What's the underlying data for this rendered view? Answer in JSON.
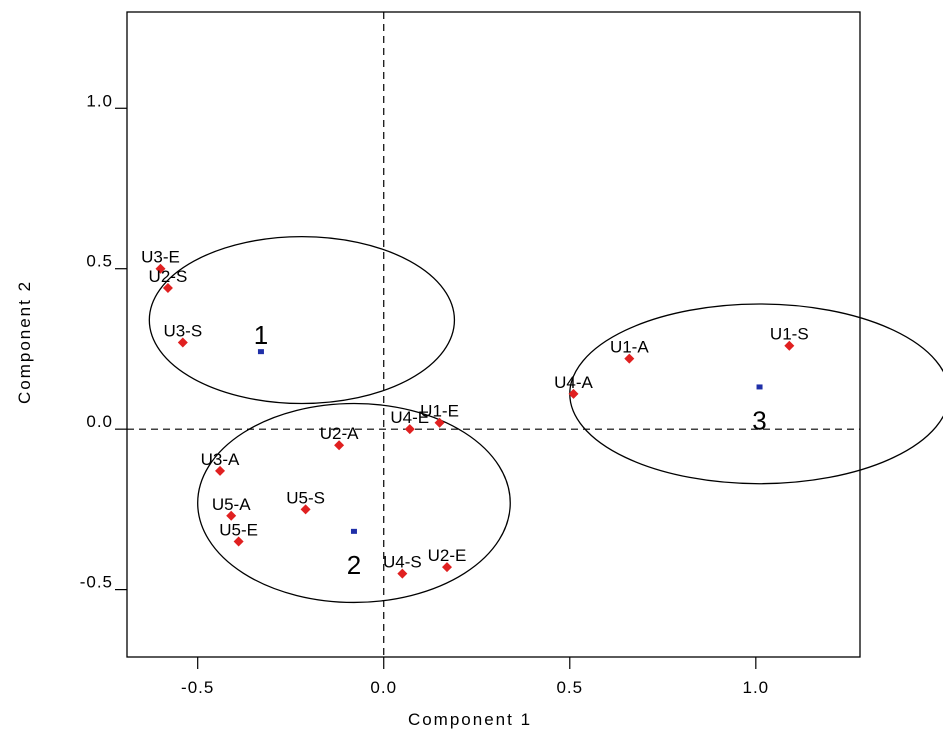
{
  "chart_data": {
    "type": "scatter",
    "title": "",
    "xlabel": "Component 1",
    "ylabel": "Component 2",
    "xlim": [
      -0.69,
      1.28
    ],
    "ylim": [
      -0.71,
      1.3
    ],
    "x_ticks": [
      {
        "value": -0.5,
        "label": "-0.5"
      },
      {
        "value": 0.0,
        "label": "0.0"
      },
      {
        "value": 0.5,
        "label": "0.5"
      },
      {
        "value": 1.0,
        "label": "1.0"
      }
    ],
    "y_ticks": [
      {
        "value": -0.5,
        "label": "-0.5"
      },
      {
        "value": 0.0,
        "label": "0.0"
      },
      {
        "value": 0.5,
        "label": "0.5"
      },
      {
        "value": 1.0,
        "label": "1.0"
      }
    ],
    "reference_lines": {
      "x": 0.0,
      "y": 0.0,
      "style": "dashed"
    },
    "points": [
      {
        "label": "U3-E",
        "x": -0.6,
        "y": 0.5
      },
      {
        "label": "U2-S",
        "x": -0.58,
        "y": 0.44
      },
      {
        "label": "U3-S",
        "x": -0.54,
        "y": 0.27
      },
      {
        "label": "U1-A",
        "x": 0.66,
        "y": 0.22
      },
      {
        "label": "U1-S",
        "x": 1.09,
        "y": 0.26
      },
      {
        "label": "U4-A",
        "x": 0.51,
        "y": 0.11
      },
      {
        "label": "U4-E",
        "x": 0.07,
        "y": 0.0
      },
      {
        "label": "U1-E",
        "x": 0.15,
        "y": 0.02
      },
      {
        "label": "U2-A",
        "x": -0.12,
        "y": -0.05
      },
      {
        "label": "U3-A",
        "x": -0.44,
        "y": -0.13
      },
      {
        "label": "U5-A",
        "x": -0.41,
        "y": -0.27
      },
      {
        "label": "U5-S",
        "x": -0.21,
        "y": -0.25
      },
      {
        "label": "U5-E",
        "x": -0.39,
        "y": -0.35
      },
      {
        "label": "U4-S",
        "x": 0.05,
        "y": -0.45
      },
      {
        "label": "U2-E",
        "x": 0.17,
        "y": -0.43
      }
    ],
    "clusters": [
      {
        "label": "1",
        "center_x": -0.33,
        "center_y": 0.24,
        "ellipse_cx": -0.22,
        "ellipse_cy": 0.34,
        "ellipse_rx": 0.41,
        "ellipse_ry": 0.26
      },
      {
        "label": "2",
        "center_x": -0.08,
        "center_y": -0.32,
        "ellipse_cx": -0.08,
        "ellipse_cy": -0.23,
        "ellipse_rx": 0.42,
        "ellipse_ry": 0.31
      },
      {
        "label": "3",
        "center_x": 1.01,
        "center_y": 0.13,
        "ellipse_cx": 1.01,
        "ellipse_cy": 0.11,
        "ellipse_rx": 0.51,
        "ellipse_ry": 0.28
      }
    ],
    "colors": {
      "point": "#e02020",
      "center": "#1f2fa8",
      "lines": "#000000"
    },
    "grid": false,
    "legend": "none"
  }
}
